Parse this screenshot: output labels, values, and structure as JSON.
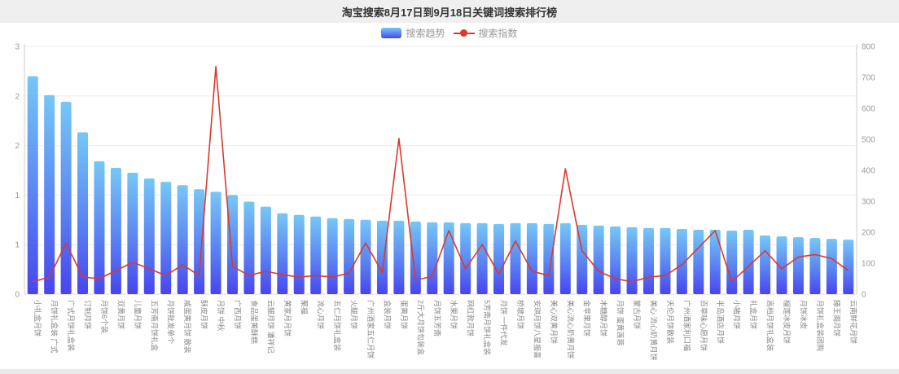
{
  "title": "淘宝搜索8月17日到9月18日关键词搜索排行榜",
  "legend": {
    "bar_label": "搜索趋势",
    "line_label": "搜索指数"
  },
  "colors": {
    "bar_gradient_top": "#76c7f6",
    "bar_gradient_mid": "#5b84f2",
    "bar_gradient_bottom": "#4845ee",
    "line": "#d93a2e",
    "title_bg": "#efefef",
    "axis_text": "#999999",
    "x_label_text": "#888888",
    "grid_line": "#eeeeee",
    "axis_line": "#cccccc"
  },
  "chart_data": {
    "type": "bar",
    "title": "淘宝搜索8月17日到9月18日关键词搜索排行榜",
    "grid": true,
    "legend_position": "top",
    "categories": [
      "小礼盒月饼",
      "月饼礼盒装 广式",
      "广式月饼礼盒装",
      "订制月饼",
      "月饼6个装",
      "双黄月饼",
      "儿童月饼",
      "五芳斋月饼礼盒",
      "月饼批发单个",
      "咸蛋黄月饼 散装",
      "酥皮月饼",
      "月饼 中秋",
      "广西月饼",
      "食品蛋黄酥糕",
      "云腿月饼 潘祥记",
      "黄家月月饼",
      "聚福",
      "流心月饼",
      "五仁月饼礼盒装",
      "火腿月饼",
      "广州酒家五仁月饼",
      "盒装月饼",
      "蛋黄月饼",
      "2斤大月饼包装盒",
      "月饼五芳斋",
      "水果月饼",
      "网红款月饼",
      "5芳斋月饼礼盒装",
      "月饼 一件代发",
      "桥墩月饼",
      "安琪月饼八星报喜",
      "美心双黄月饼",
      "美心流心奶黄月饼",
      "金苹果月饼",
      "木糖醇月饼",
      "月饼 蛋黄莲蓉",
      "蒙古月饼",
      "美心 流心奶黄月饼",
      "天伦月饼散装",
      "广州酒家利口福",
      "百草味心愿月饼",
      "半岛酒店月饼",
      "小猪月饼",
      "礼盒月饼",
      "高档月饼礼盒装",
      "榴莲冰皮月饼",
      "月饼冰皮",
      "月饼礼盒装团购",
      "滕王阁月饼",
      "云南鲜花月饼"
    ],
    "series": [
      {
        "name": "搜索趋势",
        "type": "bar",
        "axis": "left",
        "values": [
          2.64,
          2.41,
          2.33,
          1.96,
          1.61,
          1.53,
          1.47,
          1.4,
          1.36,
          1.32,
          1.27,
          1.24,
          1.2,
          1.12,
          1.06,
          0.98,
          0.96,
          0.94,
          0.92,
          0.91,
          0.9,
          0.89,
          0.89,
          0.88,
          0.87,
          0.87,
          0.86,
          0.86,
          0.85,
          0.86,
          0.86,
          0.85,
          0.86,
          0.84,
          0.83,
          0.82,
          0.81,
          0.8,
          0.8,
          0.79,
          0.78,
          0.78,
          0.77,
          0.78,
          0.71,
          0.7,
          0.69,
          0.68,
          0.67,
          0.66
        ]
      },
      {
        "name": "搜索指数",
        "type": "line",
        "axis": "right",
        "values": [
          40,
          55,
          165,
          55,
          50,
          76,
          103,
          82,
          60,
          95,
          60,
          735,
          90,
          60,
          74,
          63,
          55,
          60,
          55,
          68,
          165,
          70,
          503,
          45,
          58,
          205,
          82,
          160,
          65,
          171,
          74,
          60,
          405,
          140,
          74,
          50,
          40,
          55,
          60,
          95,
          150,
          205,
          40,
          90,
          140,
          82,
          120,
          128,
          115,
          76
        ]
      }
    ],
    "left_axis": {
      "min": 0,
      "max": 3,
      "tick_values": [
        0,
        0.6,
        1.2,
        1.8,
        2.4,
        3
      ],
      "tick_labels": [
        "0",
        "1",
        "1",
        "2",
        "2",
        "3"
      ]
    },
    "right_axis": {
      "min": 0,
      "max": 800,
      "tick_values": [
        0,
        100,
        200,
        300,
        400,
        500,
        600,
        700,
        800
      ],
      "tick_labels": [
        "0",
        "100",
        "200",
        "300",
        "400",
        "500",
        "600",
        "700",
        "800"
      ]
    }
  }
}
